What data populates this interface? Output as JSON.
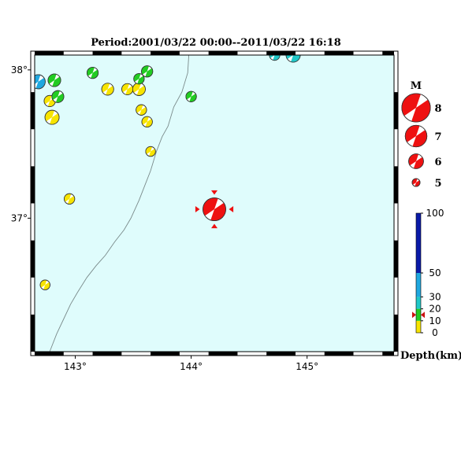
{
  "title": "Period:2001/03/22 00:00--2011/03/22 16:18",
  "lon_ticks": [
    {
      "value": 143,
      "label": "143°"
    },
    {
      "value": 144,
      "label": "144°"
    },
    {
      "value": 145,
      "label": "145°"
    }
  ],
  "lat_ticks": [
    {
      "value": 38,
      "label": "38°"
    },
    {
      "value": 37,
      "label": "37°"
    }
  ],
  "extent": {
    "lon_min": 142.65,
    "lon_max": 145.75,
    "lat_min": 36.1,
    "lat_max": 38.1
  },
  "colors": {
    "sea": "#dffcfc",
    "coast": "#7a8a8a",
    "depth_0_10": "#f7e400",
    "depth_10_20": "#22cc22",
    "depth_20_30": "#20c8c8",
    "depth_30_50": "#20a8e0",
    "depth_50_100": "#0a1aa8",
    "main_event": "#ee1111"
  },
  "magnitude_legend": {
    "title": "M",
    "items": [
      {
        "label": "8",
        "mag": 8
      },
      {
        "label": "7",
        "mag": 7
      },
      {
        "label": "6",
        "mag": 6
      },
      {
        "label": "5",
        "mag": 5
      }
    ]
  },
  "depth_legend": {
    "title": "Depth(km)",
    "ticks": [
      {
        "value": 100,
        "label": "100"
      },
      {
        "value": 50,
        "label": "50"
      },
      {
        "value": 30,
        "label": "30"
      },
      {
        "value": 20,
        "label": "20"
      },
      {
        "value": 10,
        "label": "10"
      },
      {
        "value": 0,
        "label": "0"
      }
    ],
    "marker_depth": 15
  },
  "main_event": {
    "lon": 144.2,
    "lat": 37.06,
    "mag": 7,
    "depth": 15
  },
  "events": [
    {
      "lon": 142.68,
      "lat": 37.92,
      "mag": 5.8,
      "depth": 40
    },
    {
      "lon": 142.82,
      "lat": 37.93,
      "mag": 5.6,
      "depth": 15
    },
    {
      "lon": 142.78,
      "lat": 37.79,
      "mag": 5.4,
      "depth": 8
    },
    {
      "lon": 142.85,
      "lat": 37.82,
      "mag": 5.5,
      "depth": 15
    },
    {
      "lon": 142.8,
      "lat": 37.68,
      "mag": 5.8,
      "depth": 5
    },
    {
      "lon": 143.15,
      "lat": 37.98,
      "mag": 5.4,
      "depth": 15
    },
    {
      "lon": 143.28,
      "lat": 37.87,
      "mag": 5.5,
      "depth": 5
    },
    {
      "lon": 143.45,
      "lat": 37.87,
      "mag": 5.4,
      "depth": 5
    },
    {
      "lon": 143.55,
      "lat": 37.87,
      "mag": 5.6,
      "depth": 5
    },
    {
      "lon": 143.55,
      "lat": 37.94,
      "mag": 5.3,
      "depth": 15
    },
    {
      "lon": 143.62,
      "lat": 37.99,
      "mag": 5.4,
      "depth": 15
    },
    {
      "lon": 143.57,
      "lat": 37.73,
      "mag": 5.3,
      "depth": 5
    },
    {
      "lon": 143.62,
      "lat": 37.65,
      "mag": 5.3,
      "depth": 5
    },
    {
      "lon": 143.65,
      "lat": 37.45,
      "mag": 5.2,
      "depth": 5
    },
    {
      "lon": 144.0,
      "lat": 37.82,
      "mag": 5.3,
      "depth": 15
    },
    {
      "lon": 144.72,
      "lat": 38.1,
      "mag": 5.3,
      "depth": 25
    },
    {
      "lon": 144.88,
      "lat": 38.1,
      "mag": 5.8,
      "depth": 25
    },
    {
      "lon": 142.95,
      "lat": 37.13,
      "mag": 5.3,
      "depth": 5
    },
    {
      "lon": 142.74,
      "lat": 36.55,
      "mag": 5.2,
      "depth": 5
    }
  ],
  "coastline": [
    [
      143.98,
      38.1
    ],
    [
      143.97,
      37.98
    ],
    [
      143.92,
      37.85
    ],
    [
      143.85,
      37.75
    ],
    [
      143.8,
      37.62
    ],
    [
      143.75,
      37.55
    ],
    [
      143.7,
      37.45
    ],
    [
      143.65,
      37.32
    ],
    [
      143.6,
      37.22
    ],
    [
      143.55,
      37.12
    ],
    [
      143.48,
      37.0
    ],
    [
      143.42,
      36.92
    ],
    [
      143.34,
      36.84
    ],
    [
      143.26,
      36.75
    ],
    [
      143.18,
      36.68
    ],
    [
      143.1,
      36.6
    ],
    [
      143.02,
      36.5
    ],
    [
      142.96,
      36.42
    ],
    [
      142.9,
      36.32
    ],
    [
      142.84,
      36.22
    ],
    [
      142.78,
      36.1
    ]
  ]
}
